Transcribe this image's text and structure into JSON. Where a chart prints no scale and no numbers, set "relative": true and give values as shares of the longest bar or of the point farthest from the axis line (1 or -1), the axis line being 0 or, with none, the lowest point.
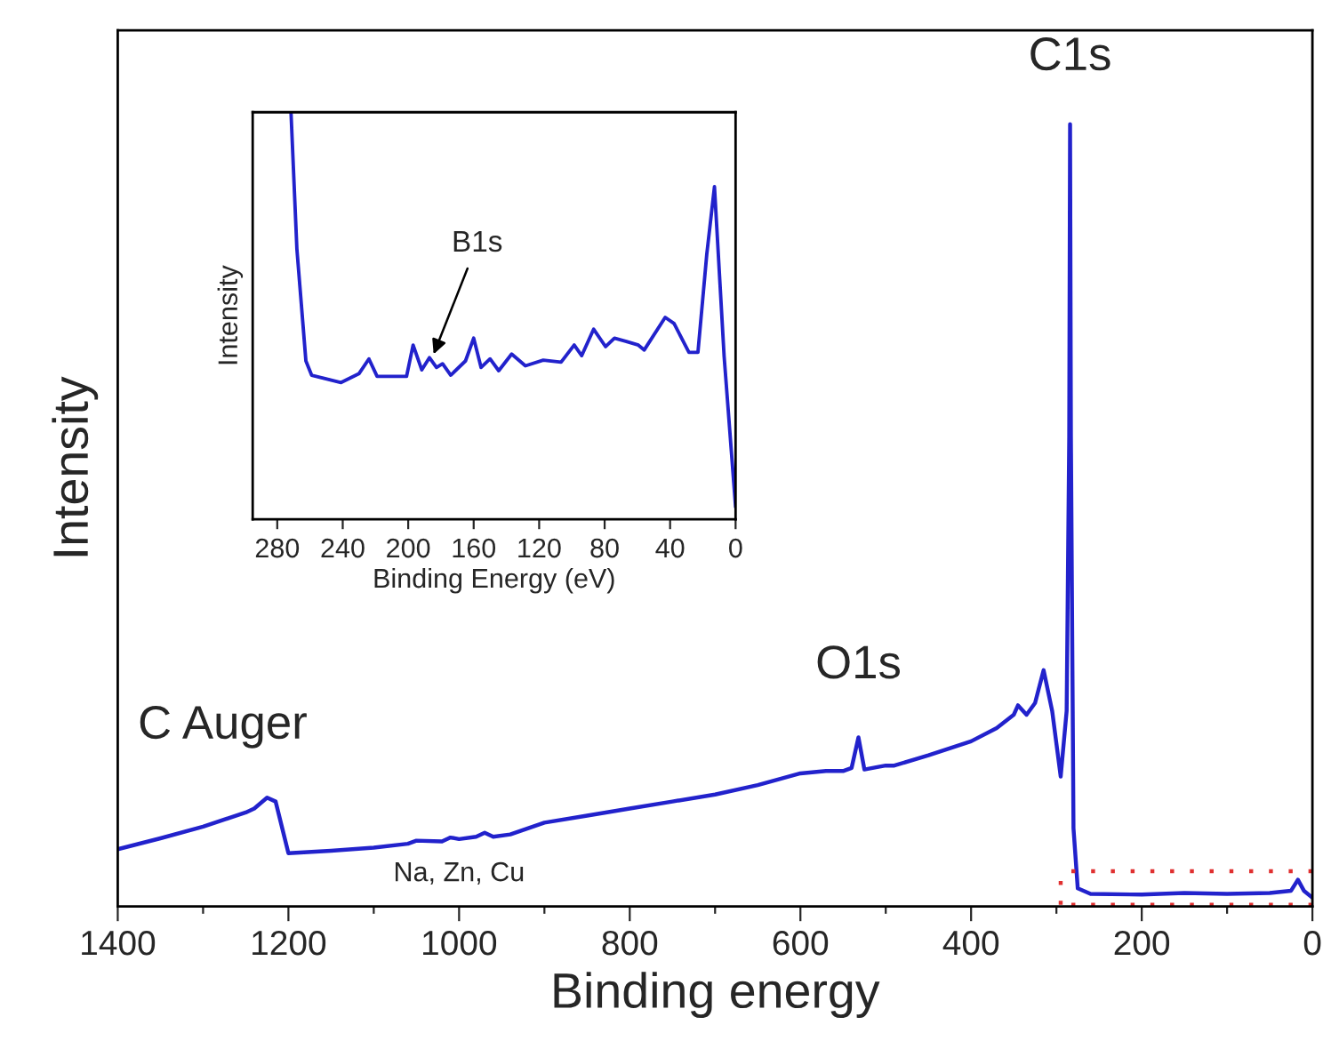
{
  "chart_data": [
    {
      "type": "line",
      "xlabel": "Binding energy",
      "ylabel": "Intensity",
      "relative": true,
      "xlim": [
        1400,
        0
      ],
      "xticks": [
        1400,
        {
          "value": 1300,
          "label": null
        },
        1200,
        {
          "value": 1100,
          "label": null
        },
        1000,
        {
          "value": 900,
          "label": null
        },
        800,
        {
          "value": 700,
          "label": null
        },
        600,
        {
          "value": 500,
          "label": null
        },
        400,
        {
          "value": 300,
          "label": null
        },
        200,
        {
          "value": 100,
          "label": null
        },
        0
      ],
      "tick_labels": "x",
      "grid": false,
      "legend": false,
      "marker": "none",
      "line_style": "solid",
      "series": [
        {
          "color": "#2222cc",
          "x": [
            1400,
            1350,
            1300,
            1250,
            1240,
            1225,
            1215,
            1205,
            1200,
            1150,
            1100,
            1060,
            1050,
            1020,
            1010,
            1000,
            980,
            970,
            960,
            940,
            900,
            850,
            800,
            750,
            700,
            650,
            600,
            570,
            550,
            540,
            532,
            525,
            510,
            500,
            490,
            450,
            400,
            370,
            350,
            345,
            335,
            325,
            315,
            305,
            295,
            288,
            285,
            284,
            283,
            280,
            275,
            260,
            200,
            150,
            100,
            50,
            25,
            17,
            10,
            0
          ],
          "values": [
            0.073,
            0.087,
            0.102,
            0.12,
            0.125,
            0.139,
            0.134,
            0.09,
            0.068,
            0.071,
            0.075,
            0.08,
            0.084,
            0.083,
            0.088,
            0.086,
            0.089,
            0.094,
            0.089,
            0.092,
            0.107,
            0.116,
            0.125,
            0.134,
            0.143,
            0.155,
            0.17,
            0.173,
            0.173,
            0.177,
            0.216,
            0.175,
            0.178,
            0.18,
            0.18,
            0.193,
            0.211,
            0.228,
            0.245,
            0.257,
            0.245,
            0.26,
            0.302,
            0.25,
            0.166,
            0.25,
            0.6,
            1.0,
            0.6,
            0.1,
            0.023,
            0.016,
            0.015,
            0.017,
            0.016,
            0.017,
            0.02,
            0.034,
            0.02,
            0.011
          ]
        }
      ],
      "annotations": [
        {
          "text": "C1s",
          "x": 284,
          "y": 1.0
        },
        {
          "text": "O1s",
          "x": 532,
          "y": 0.216
        },
        {
          "text": "C Auger",
          "x": 1225,
          "y": 0.139
        },
        {
          "text": "Na, Zn, Cu",
          "x": 1000,
          "y": 0.089
        }
      ]
    },
    {
      "type": "line",
      "xlabel": "Binding Energy (eV)",
      "ylabel": "Intensity",
      "relative": true,
      "xlim": [
        295,
        0
      ],
      "xticks": [
        280,
        240,
        200,
        160,
        120,
        80,
        40,
        0
      ],
      "tick_labels": "x",
      "grid": false,
      "legend": false,
      "marker": "none",
      "line_style": "solid",
      "series": [
        {
          "color": "#2222cc",
          "x": [
            271.6,
            268,
            262.5,
            259,
            241,
            230,
            224,
            219,
            201,
            197,
            191.7,
            187,
            182.7,
            179,
            174,
            165,
            160,
            155.5,
            150,
            144.7,
            136.8,
            128.4,
            117.5,
            106.6,
            98.6,
            94,
            86.7,
            79.4,
            74,
            66.7,
            59.4,
            55.8,
            43,
            37.6,
            28.5,
            23,
            17.6,
            12.9,
            7,
            0
          ],
          "values": [
            1.0,
            0.664,
            0.389,
            0.354,
            0.336,
            0.358,
            0.394,
            0.351,
            0.351,
            0.428,
            0.367,
            0.397,
            0.373,
            0.382,
            0.354,
            0.389,
            0.445,
            0.373,
            0.394,
            0.365,
            0.406,
            0.377,
            0.391,
            0.386,
            0.428,
            0.402,
            0.467,
            0.424,
            0.445,
            0.437,
            0.428,
            0.416,
            0.496,
            0.481,
            0.41,
            0.41,
            0.651,
            0.817,
            0.4,
            0.03
          ]
        }
      ],
      "annotations": [
        {
          "text": "B1s",
          "x": 185,
          "y": 0.4
        }
      ]
    }
  ]
}
